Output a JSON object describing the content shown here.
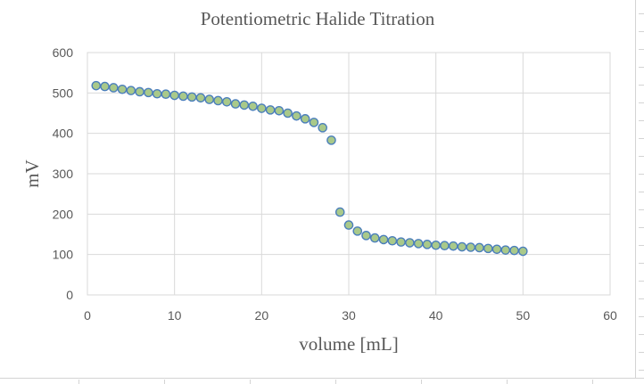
{
  "chart_data": {
    "type": "scatter",
    "title": "Potentiometric Halide Titration",
    "xlabel": "volume [mL]",
    "ylabel": "mV",
    "xlim": [
      0,
      60
    ],
    "ylim": [
      0,
      600
    ],
    "xticks": [
      0,
      10,
      20,
      30,
      40,
      50,
      60
    ],
    "yticks": [
      0,
      100,
      200,
      300,
      400,
      500,
      600
    ],
    "grid": true,
    "legend": "none",
    "marker_fill": "#a9c98a",
    "marker_edge": "#4a7ebb",
    "points": [
      [
        1,
        518
      ],
      [
        2,
        516
      ],
      [
        3,
        513
      ],
      [
        4,
        509
      ],
      [
        5,
        506
      ],
      [
        6,
        503
      ],
      [
        7,
        501
      ],
      [
        8,
        498
      ],
      [
        9,
        497
      ],
      [
        10,
        494
      ],
      [
        11,
        492
      ],
      [
        12,
        490
      ],
      [
        13,
        488
      ],
      [
        14,
        484
      ],
      [
        15,
        481
      ],
      [
        16,
        478
      ],
      [
        17,
        473
      ],
      [
        18,
        470
      ],
      [
        19,
        467
      ],
      [
        20,
        462
      ],
      [
        21,
        458
      ],
      [
        22,
        456
      ],
      [
        23,
        450
      ],
      [
        24,
        443
      ],
      [
        25,
        436
      ],
      [
        26,
        427
      ],
      [
        27,
        414
      ],
      [
        28,
        383
      ],
      [
        29,
        205
      ],
      [
        30,
        173
      ],
      [
        31,
        158
      ],
      [
        32,
        147
      ],
      [
        33,
        141
      ],
      [
        34,
        137
      ],
      [
        35,
        134
      ],
      [
        36,
        131
      ],
      [
        37,
        129
      ],
      [
        38,
        127
      ],
      [
        39,
        125
      ],
      [
        40,
        123
      ],
      [
        41,
        122
      ],
      [
        42,
        121
      ],
      [
        43,
        119
      ],
      [
        44,
        118
      ],
      [
        45,
        117
      ],
      [
        46,
        115
      ],
      [
        47,
        113
      ],
      [
        48,
        111
      ],
      [
        49,
        110
      ],
      [
        50,
        108
      ]
    ]
  }
}
